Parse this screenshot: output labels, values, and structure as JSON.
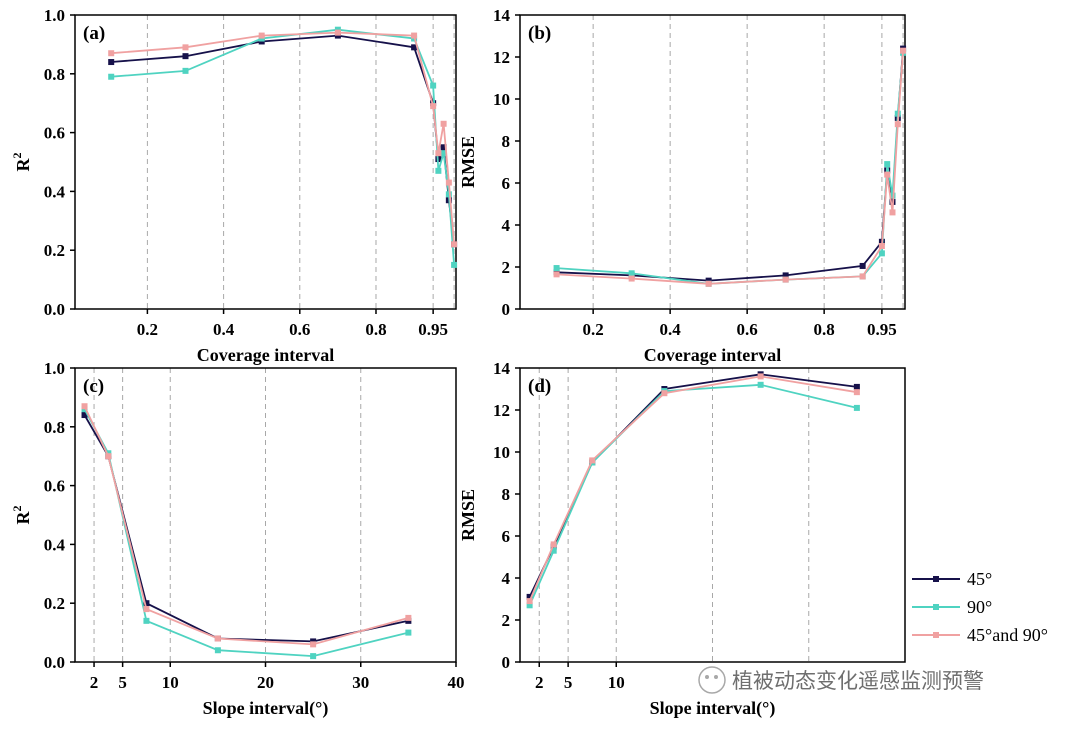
{
  "colors": {
    "s45": "#16114a",
    "s90": "#4fd3c1",
    "s4590": "#f0a1a1",
    "grid": "#a8a8a8"
  },
  "legend": {
    "items": [
      "45°",
      "90°",
      "45°and 90°"
    ]
  },
  "watermark": {
    "text": "植被动态变化遥感监测预警"
  },
  "chart_data": [
    {
      "id": "a",
      "type": "line",
      "title": "(a)",
      "xlabel": "Coverage interval",
      "ylabel": "R2",
      "x_scale": "piecewise",
      "x_ticks": [
        0.2,
        0.4,
        0.6,
        0.8,
        0.95
      ],
      "x_tick_labels": [
        "0.2",
        "0.4",
        "0.6",
        "0.8",
        "0.95"
      ],
      "ylim": [
        0,
        1.0
      ],
      "y_step": 0.2,
      "y_tick_labels": [
        "0.0",
        "0.2",
        "0.4",
        "0.6",
        "0.8",
        "1.0"
      ],
      "vgrid": [
        0.2,
        0.4,
        0.6,
        0.8,
        0.95,
        0.97
      ],
      "x": [
        0.1,
        0.3,
        0.5,
        0.7,
        0.9,
        0.95,
        0.955,
        0.96,
        0.965,
        0.97
      ],
      "series": [
        {
          "name": "45°",
          "values": [
            0.84,
            0.86,
            0.91,
            0.93,
            0.89,
            0.7,
            0.51,
            0.55,
            0.37,
            0.22
          ]
        },
        {
          "name": "90°",
          "values": [
            0.79,
            0.81,
            0.92,
            0.95,
            0.92,
            0.76,
            0.47,
            0.53,
            0.39,
            0.15
          ]
        },
        {
          "name": "45°and 90°",
          "values": [
            0.87,
            0.89,
            0.93,
            0.94,
            0.93,
            0.69,
            0.53,
            0.63,
            0.43,
            0.22
          ]
        }
      ]
    },
    {
      "id": "b",
      "type": "line",
      "title": "(b)",
      "xlabel": "Coverage interval",
      "ylabel": "RMSE",
      "x_scale": "piecewise",
      "x_ticks": [
        0.2,
        0.4,
        0.6,
        0.8,
        0.95
      ],
      "x_tick_labels": [
        "0.2",
        "0.4",
        "0.6",
        "0.8",
        "0.95"
      ],
      "ylim": [
        0,
        14
      ],
      "y_step": 2,
      "y_tick_labels": [
        "0",
        "2",
        "4",
        "6",
        "8",
        "10",
        "12",
        "14"
      ],
      "vgrid": [
        0.2,
        0.4,
        0.6,
        0.8,
        0.95,
        0.97
      ],
      "x": [
        0.1,
        0.3,
        0.5,
        0.7,
        0.9,
        0.95,
        0.955,
        0.96,
        0.965,
        0.97
      ],
      "series": [
        {
          "name": "45°",
          "values": [
            1.75,
            1.6,
            1.35,
            1.6,
            2.05,
            3.2,
            6.6,
            5.1,
            9.1,
            12.4
          ]
        },
        {
          "name": "90°",
          "values": [
            1.95,
            1.7,
            1.2,
            1.4,
            1.55,
            2.65,
            6.9,
            5.4,
            9.3,
            12.2
          ]
        },
        {
          "name": "45°and 90°",
          "values": [
            1.65,
            1.45,
            1.2,
            1.4,
            1.55,
            3.0,
            6.4,
            4.6,
            8.8,
            12.3
          ]
        }
      ]
    },
    {
      "id": "c",
      "type": "line",
      "title": "(c)",
      "xlabel": "Slope interval(°)",
      "ylabel": "R2",
      "x_scale": "linear",
      "xlim": [
        0,
        40
      ],
      "x_ticks": [
        2,
        5,
        10,
        20,
        30,
        40
      ],
      "x_tick_labels": [
        "2",
        "5",
        "10",
        "20",
        "30",
        "40"
      ],
      "ylim": [
        0,
        1.0
      ],
      "y_step": 0.2,
      "y_tick_labels": [
        "0.0",
        "0.2",
        "0.4",
        "0.6",
        "0.8",
        "1.0"
      ],
      "vgrid": [
        2,
        5,
        10,
        20,
        30
      ],
      "x": [
        1,
        3.5,
        7.5,
        15,
        25,
        35
      ],
      "series": [
        {
          "name": "45°",
          "values": [
            0.84,
            0.7,
            0.2,
            0.08,
            0.07,
            0.14
          ]
        },
        {
          "name": "90°",
          "values": [
            0.86,
            0.71,
            0.14,
            0.04,
            0.02,
            0.1
          ]
        },
        {
          "name": "45°and 90°",
          "values": [
            0.87,
            0.7,
            0.18,
            0.08,
            0.06,
            0.15
          ]
        }
      ]
    },
    {
      "id": "d",
      "type": "line",
      "title": "(d)",
      "xlabel": "Slope interval(°)",
      "ylabel": "RMSE",
      "x_scale": "linear",
      "xlim": [
        0,
        40
      ],
      "x_ticks": [
        2,
        5,
        10
      ],
      "x_tick_labels": [
        "2",
        "5",
        "10"
      ],
      "ylim": [
        0,
        14
      ],
      "y_step": 2,
      "y_tick_labels": [
        "0",
        "2",
        "4",
        "6",
        "8",
        "10",
        "12",
        "14"
      ],
      "vgrid": [
        2,
        5,
        10,
        20,
        30
      ],
      "x": [
        1,
        3.5,
        7.5,
        15,
        25,
        35
      ],
      "series": [
        {
          "name": "45°",
          "values": [
            3.1,
            5.5,
            9.5,
            13.0,
            13.7,
            13.1
          ]
        },
        {
          "name": "90°",
          "values": [
            2.7,
            5.3,
            9.5,
            12.9,
            13.2,
            12.1
          ]
        },
        {
          "name": "45°and 90°",
          "values": [
            2.9,
            5.6,
            9.6,
            12.8,
            13.6,
            12.85
          ]
        }
      ]
    }
  ]
}
